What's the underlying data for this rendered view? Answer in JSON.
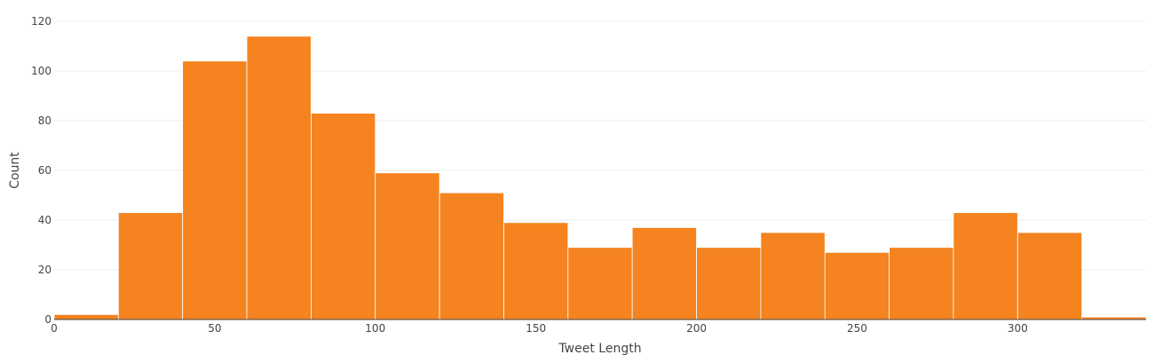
{
  "chart_data": {
    "type": "bar",
    "subtype": "histogram",
    "title": "",
    "xlabel": "Tweet Length",
    "ylabel": "Count",
    "bin_width": 20,
    "bins": [
      {
        "start": 0,
        "end": 20,
        "count": 2
      },
      {
        "start": 20,
        "end": 40,
        "count": 43
      },
      {
        "start": 40,
        "end": 60,
        "count": 104
      },
      {
        "start": 60,
        "end": 80,
        "count": 114
      },
      {
        "start": 80,
        "end": 100,
        "count": 83
      },
      {
        "start": 100,
        "end": 120,
        "count": 59
      },
      {
        "start": 120,
        "end": 140,
        "count": 51
      },
      {
        "start": 140,
        "end": 160,
        "count": 39
      },
      {
        "start": 160,
        "end": 180,
        "count": 29
      },
      {
        "start": 180,
        "end": 200,
        "count": 37
      },
      {
        "start": 200,
        "end": 220,
        "count": 29
      },
      {
        "start": 220,
        "end": 240,
        "count": 35
      },
      {
        "start": 240,
        "end": 260,
        "count": 27
      },
      {
        "start": 260,
        "end": 280,
        "count": 29
      },
      {
        "start": 280,
        "end": 300,
        "count": 43
      },
      {
        "start": 300,
        "end": 320,
        "count": 35
      },
      {
        "start": 320,
        "end": 340,
        "count": 1
      }
    ],
    "xlim": [
      0,
      340
    ],
    "ylim": [
      0,
      120
    ],
    "x_ticks": [
      0,
      50,
      100,
      150,
      200,
      250,
      300
    ],
    "y_ticks": [
      0,
      20,
      40,
      60,
      80,
      100,
      120
    ],
    "bar_color": "#f5831f",
    "grid": true,
    "legend": "none"
  }
}
